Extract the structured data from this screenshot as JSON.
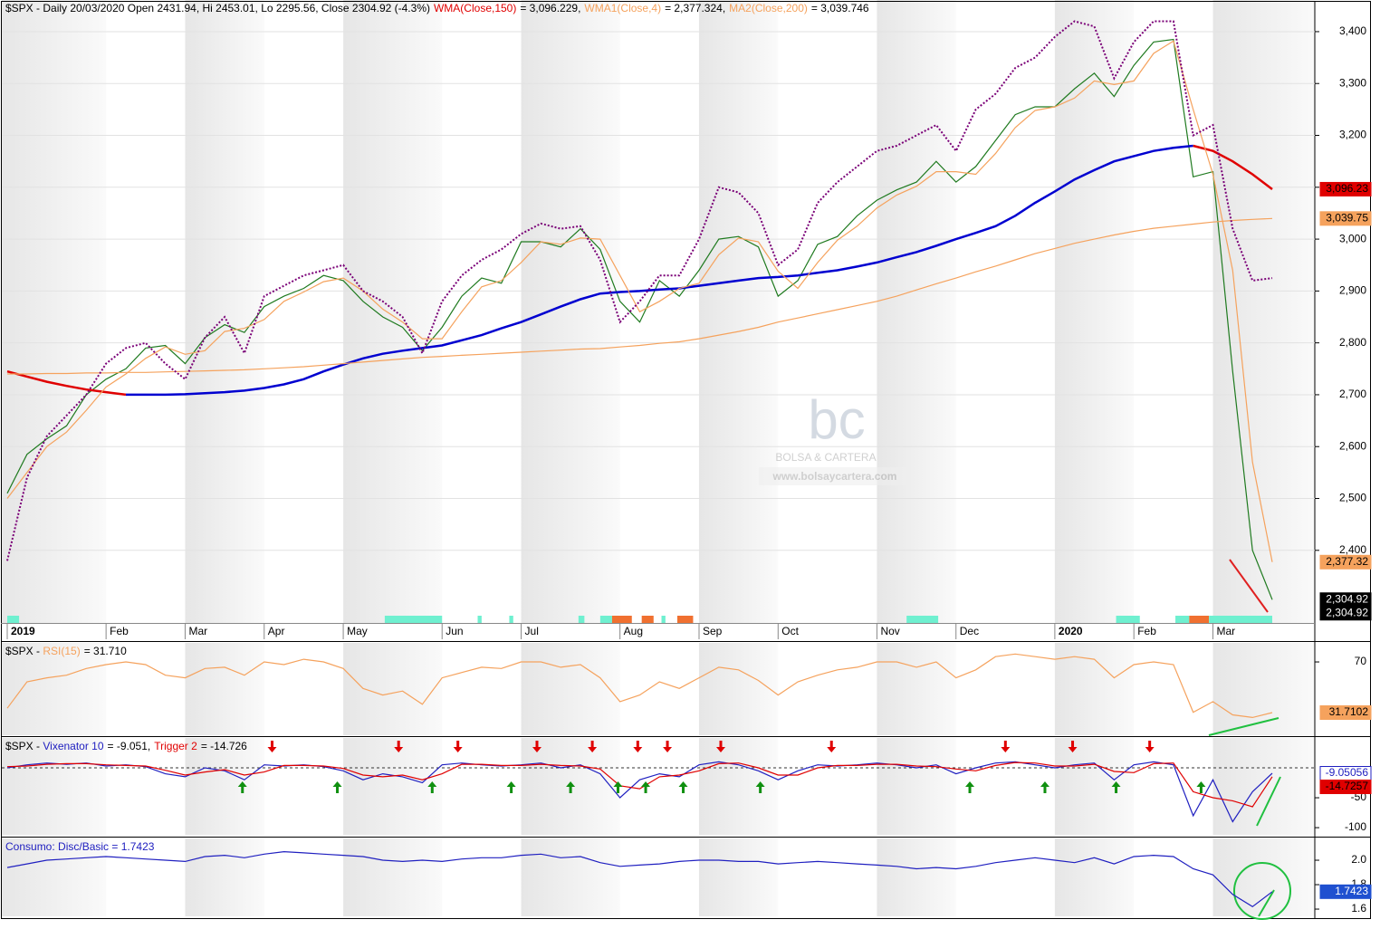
{
  "watermark": {
    "logo": "bc",
    "brand": "BOLSA & CARTERA",
    "url": "www.bolsaycartera.com"
  },
  "chart_data": [
    {
      "type": "line",
      "title": "$SPX - Daily 20/03/2020 Open 2431.94, Hi 2453.01, Lo 2295.56, Close 2304.92 (-4.3%)",
      "categories": [
        "2019",
        null,
        null,
        null,
        null,
        "Feb",
        null,
        null,
        null,
        "Mar",
        null,
        null,
        null,
        "Apr",
        null,
        null,
        null,
        "May",
        null,
        null,
        null,
        null,
        "Jun",
        null,
        null,
        null,
        "Jul",
        null,
        null,
        null,
        null,
        "Aug",
        null,
        null,
        null,
        "Sep",
        null,
        null,
        null,
        "Oct",
        null,
        null,
        null,
        null,
        "Nov",
        null,
        null,
        null,
        "Dec",
        null,
        null,
        null,
        null,
        "2020",
        null,
        null,
        null,
        "Feb",
        null,
        null,
        null,
        "Mar",
        null,
        null,
        null
      ],
      "ylim": [
        2260,
        3461
      ],
      "yticks": [
        {
          "value": 2400,
          "label": "2,400"
        },
        {
          "value": 2500,
          "label": "2,500"
        },
        {
          "value": 2600,
          "label": "2,600"
        },
        {
          "value": 2700,
          "label": "2,700"
        },
        {
          "value": 2800,
          "label": "2,800"
        },
        {
          "value": 2900,
          "label": "2,900"
        },
        {
          "value": 3000,
          "label": "3,000"
        },
        {
          "value": 3100,
          "label": "3,100"
        },
        {
          "value": 3200,
          "label": "3,200"
        },
        {
          "value": 3300,
          "label": "3,300"
        },
        {
          "value": 3400,
          "label": "3,400"
        }
      ],
      "grid": true,
      "series": [
        {
          "color": "#1f7a1f",
          "values": [
            2510,
            2585,
            2615,
            2640,
            2700,
            2730,
            2750,
            2790,
            2795,
            2760,
            2810,
            2835,
            2820,
            2870,
            2890,
            2905,
            2930,
            2920,
            2880,
            2850,
            2830,
            2785,
            2830,
            2890,
            2925,
            2915,
            2995,
            2995,
            2985,
            3020,
            2980,
            2880,
            2840,
            2920,
            2890,
            2940,
            3000,
            3005,
            2985,
            2890,
            2920,
            2990,
            3005,
            3045,
            3075,
            3095,
            3110,
            3150,
            3110,
            3140,
            3190,
            3240,
            3255,
            3255,
            3290,
            3320,
            3275,
            3335,
            3380,
            3385,
            3120,
            3130,
            2745,
            2400,
            2304.92
          ]
        },
        {
          "name": "WMA(Close,150)",
          "legend_value": "= 3,096.229,",
          "color": "#0000d0",
          "down_color": "#e00000",
          "style": "thick",
          "values": [
            2745,
            2735,
            2725,
            2717,
            2710,
            2705,
            2700,
            2700,
            2700,
            2701,
            2703,
            2705,
            2708,
            2713,
            2720,
            2730,
            2745,
            2758,
            2770,
            2779,
            2785,
            2790,
            2795,
            2805,
            2815,
            2828,
            2840,
            2855,
            2870,
            2884,
            2895,
            2898,
            2900,
            2903,
            2905,
            2910,
            2915,
            2920,
            2925,
            2927,
            2930,
            2935,
            2940,
            2947,
            2955,
            2965,
            2975,
            2987,
            3000,
            3012,
            3025,
            3045,
            3070,
            3092,
            3115,
            3133,
            3150,
            3160,
            3170,
            3176,
            3180,
            3170,
            3150,
            3125,
            3096.229
          ]
        },
        {
          "name": "WMA1(Close,4)",
          "legend_value": "= 2,377.324,",
          "color": "#f5a25d",
          "values": [
            2500,
            2550,
            2600,
            2628,
            2670,
            2715,
            2740,
            2770,
            2792,
            2778,
            2785,
            2822,
            2828,
            2845,
            2880,
            2898,
            2918,
            2925,
            2900,
            2865,
            2840,
            2808,
            2808,
            2860,
            2908,
            2920,
            2955,
            2995,
            2990,
            3002,
            3000,
            2930,
            2860,
            2880,
            2905,
            2915,
            2970,
            3002,
            2995,
            2938,
            2905,
            2955,
            2998,
            3025,
            3060,
            3085,
            3102,
            3130,
            3130,
            3125,
            3165,
            3215,
            3248,
            3255,
            3272,
            3305,
            3298,
            3305,
            3358,
            3382,
            3250,
            3125,
            2940,
            2570,
            2377.324
          ]
        },
        {
          "name": "MA2(Close,200)",
          "legend_value": "= 3,039.746",
          "color": "#f5a25d",
          "values": [
            2740,
            2740,
            2741,
            2741,
            2742,
            2742,
            2743,
            2743,
            2744,
            2745,
            2746,
            2747,
            2748,
            2750,
            2752,
            2754,
            2757,
            2760,
            2763,
            2766,
            2769,
            2772,
            2774,
            2776,
            2778,
            2780,
            2782,
            2784,
            2786,
            2788,
            2789,
            2792,
            2795,
            2799,
            2802,
            2808,
            2815,
            2822,
            2830,
            2840,
            2848,
            2856,
            2864,
            2872,
            2880,
            2890,
            2902,
            2914,
            2925,
            2937,
            2948,
            2960,
            2972,
            2982,
            2992,
            3000,
            3008,
            3015,
            3021,
            3025,
            3029,
            3033,
            3036,
            3038,
            3039.746
          ]
        },
        {
          "color": "#7a0077",
          "style": "dotted",
          "values": [
            2380,
            2540,
            2620,
            2660,
            2700,
            2760,
            2790,
            2800,
            2760,
            2730,
            2810,
            2850,
            2780,
            2890,
            2910,
            2930,
            2940,
            2950,
            2900,
            2880,
            2850,
            2780,
            2880,
            2930,
            2960,
            2980,
            3010,
            3030,
            3020,
            3025,
            2960,
            2840,
            2880,
            2930,
            2930,
            3000,
            3100,
            3090,
            3050,
            2950,
            2980,
            3070,
            3110,
            3140,
            3170,
            3180,
            3200,
            3220,
            3170,
            3250,
            3280,
            3330,
            3350,
            3390,
            3420,
            3410,
            3310,
            3380,
            3420,
            3420,
            3200,
            3220,
            3020,
            2920,
            2925
          ]
        }
      ],
      "price_markers": [
        {
          "value": 3096.23,
          "label": "3,096.23",
          "color": "#e00000",
          "text_color": "#000000"
        },
        {
          "value": 3039.75,
          "label": "3,039.75",
          "color": "#f5a25d",
          "text_color": "#000000"
        },
        {
          "value": 2377.32,
          "label": "2,377.32",
          "color": "#f5a25d",
          "text_color": "#000000"
        },
        {
          "value": 2304.92,
          "label": "2,304.92",
          "color": "#000000",
          "text_color": "#ffffff"
        },
        {
          "value": 2304.92,
          "label": "2,304.92",
          "color": "#000000",
          "text_color": "#ffffff"
        }
      ],
      "bands": [
        {
          "from": 0,
          "to": 0.6,
          "color": "#6ff0d0"
        },
        {
          "from": 19.1,
          "to": 22.0,
          "color": "#6ff0d0"
        },
        {
          "from": 23.8,
          "to": 24.0,
          "color": "#6ff0d0"
        },
        {
          "from": 25.4,
          "to": 25.6,
          "color": "#6ff0d0"
        },
        {
          "from": 28.9,
          "to": 29.2,
          "color": "#6ff0d0"
        },
        {
          "from": 30.0,
          "to": 30.6,
          "color": "#6ff0d0"
        },
        {
          "from": 30.6,
          "to": 31.6,
          "color": "#f07030"
        },
        {
          "from": 32.1,
          "to": 32.7,
          "color": "#f07030"
        },
        {
          "from": 33.1,
          "to": 33.3,
          "color": "#6ff0d0"
        },
        {
          "from": 33.9,
          "to": 34.7,
          "color": "#f07030"
        },
        {
          "from": 45.5,
          "to": 47.1,
          "color": "#6ff0d0"
        },
        {
          "from": 56.1,
          "to": 57.3,
          "color": "#6ff0d0"
        },
        {
          "from": 59.1,
          "to": 59.8,
          "color": "#6ff0d0"
        },
        {
          "from": 59.8,
          "to": 60.8,
          "color": "#f07030"
        },
        {
          "from": 60.8,
          "to": 64.0,
          "color": "#6ff0d0"
        }
      ]
    },
    {
      "type": "line",
      "title": "$SPX - ",
      "ylim": [
        14.6,
        84.4
      ],
      "yticks": [
        70
      ],
      "series": [
        {
          "name": "RSI(15)",
          "legend_value": "= 31.710",
          "color": "#f5a25d",
          "values": [
            35,
            55,
            58,
            60,
            65,
            68,
            70,
            68,
            60,
            58,
            65,
            66,
            60,
            70,
            68,
            72,
            70,
            65,
            50,
            45,
            48,
            38,
            58,
            62,
            66,
            65,
            70,
            70,
            66,
            68,
            58,
            40,
            45,
            55,
            50,
            58,
            66,
            64,
            56,
            45,
            55,
            60,
            64,
            66,
            70,
            70,
            66,
            70,
            58,
            64,
            74,
            76,
            74,
            72,
            74,
            72,
            58,
            68,
            70,
            68,
            32,
            40,
            30,
            28,
            31.7102
          ]
        }
      ],
      "price_markers": [
        {
          "value": 31.7102,
          "label": "31.7102",
          "color": "#f5a25d",
          "text_color": "#000000"
        }
      ]
    },
    {
      "type": "line",
      "title": "$SPX - ",
      "ylim": [
        -112,
        50
      ],
      "yticks": [
        -50,
        -100
      ],
      "ref_line": 0,
      "series": [
        {
          "name": "Vixenator 10",
          "legend_value": "= -9.051,",
          "color": "#2020c0",
          "values": [
            0,
            5,
            8,
            6,
            8,
            3,
            5,
            2,
            -10,
            -15,
            0,
            -5,
            -20,
            5,
            3,
            5,
            2,
            -5,
            -20,
            -10,
            -15,
            -25,
            5,
            8,
            5,
            3,
            5,
            8,
            0,
            5,
            -10,
            -50,
            -20,
            -10,
            -15,
            5,
            10,
            5,
            -5,
            -20,
            -5,
            5,
            3,
            5,
            8,
            5,
            0,
            5,
            -10,
            0,
            8,
            10,
            5,
            0,
            5,
            8,
            -20,
            5,
            10,
            5,
            -80,
            -20,
            -90,
            -40,
            -9.05056
          ]
        },
        {
          "name": "Trigger 2",
          "legend_value": "= -14.726",
          "color": "#e00000",
          "values": [
            2,
            3,
            6,
            7,
            7,
            5,
            4,
            3,
            -4,
            -12,
            -7,
            -3,
            -12,
            -7,
            4,
            4,
            3,
            -1,
            -12,
            -15,
            -12,
            -20,
            -10,
            6,
            6,
            4,
            4,
            6,
            4,
            3,
            -2,
            -30,
            -35,
            -15,
            -12,
            -5,
            7,
            8,
            0,
            -12,
            -12,
            0,
            4,
            4,
            6,
            6,
            3,
            2,
            -2,
            -5,
            4,
            9,
            8,
            3,
            3,
            6,
            -6,
            -8,
            7,
            8,
            -40,
            -50,
            -55,
            -65,
            -14.7257
          ]
        }
      ],
      "down_signals": [
        13.4,
        19.8,
        22.8,
        26.8,
        29.6,
        31.9,
        33.4,
        36.1,
        41.7,
        50.5,
        53.9,
        57.8
      ],
      "up_signals": [
        11.9,
        16.7,
        21.5,
        25.5,
        28.5,
        30.9,
        32.3,
        34.2,
        38.1,
        48.7,
        52.5,
        56.1,
        60.4
      ],
      "price_markers": [
        {
          "value": -9.05056,
          "label": "-9.05056",
          "color": "#ffffff",
          "text_color": "#2020c0"
        },
        {
          "value": -14.7257,
          "label": "-14.7257",
          "color": "#e00000",
          "text_color": "#000000"
        }
      ]
    },
    {
      "type": "line",
      "title": "Consumo: Disc/Basic = 1.7423",
      "title_color": "#2020c0",
      "ylim": [
        1.541,
        2.178
      ],
      "yticks": [
        {
          "value": 2,
          "label": "2.0"
        },
        {
          "value": 1.8,
          "label": "1.8"
        },
        {
          "value": 1.6,
          "label": "1.6"
        }
      ],
      "series": [
        {
          "color": "#2020c0",
          "values": [
            1.94,
            1.97,
            2.0,
            2.01,
            2.02,
            2.03,
            2.02,
            2.01,
            2.0,
            1.99,
            2.03,
            2.04,
            2.02,
            2.05,
            2.07,
            2.06,
            2.05,
            2.04,
            2.03,
            2.0,
            1.99,
            2.0,
            1.99,
            2.01,
            2.02,
            2.02,
            2.04,
            2.05,
            2.02,
            2.03,
            1.98,
            1.95,
            1.96,
            1.97,
            1.99,
            2.0,
            2.0,
            1.99,
            1.99,
            1.97,
            1.98,
            1.99,
            1.98,
            1.97,
            1.96,
            1.95,
            1.93,
            1.94,
            1.93,
            1.95,
            1.98,
            2.0,
            2.02,
            2.0,
            1.98,
            2.02,
            1.97,
            2.03,
            2.04,
            2.03,
            1.93,
            1.88,
            1.72,
            1.62,
            1.7423
          ]
        }
      ],
      "price_markers": [
        {
          "value": 1.7423,
          "label": "1.7423",
          "color": "#1f50d0",
          "text_color": "#ffffff"
        }
      ]
    }
  ]
}
